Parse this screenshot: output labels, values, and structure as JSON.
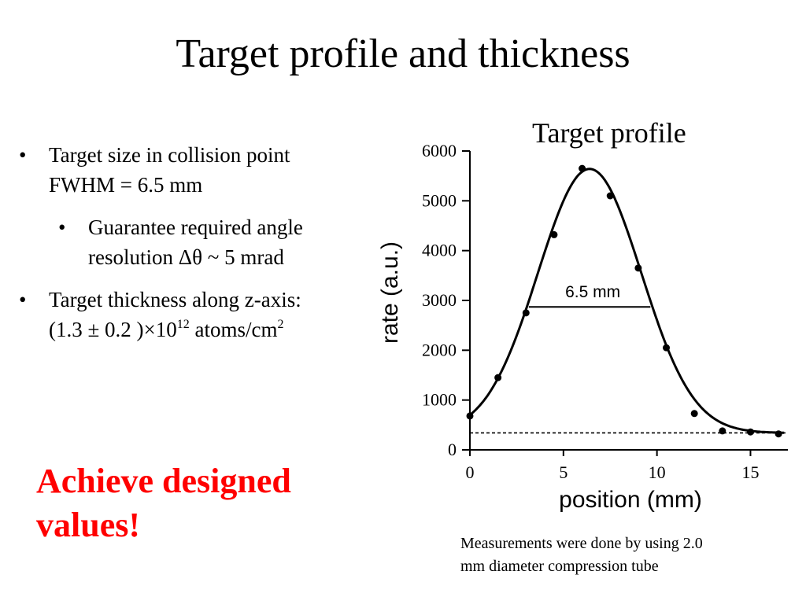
{
  "slide": {
    "title": "Target profile and thickness",
    "bullets": {
      "b1_line1": "Target size in collision point",
      "b1_line2": "FWHM = 6.5 mm",
      "b2_line1": "Guarantee required angle",
      "b2_line2": "resolution Δθ ~ 5 mrad",
      "b3_line1": "Target thickness along z-axis:",
      "b3_prefix": "(1.3 ± 0.2 )×10",
      "b3_exp": "12",
      "b3_unit": " atoms/cm",
      "b3_unit_exp": "2",
      "bullet_symbol": "•"
    },
    "callout_line1": "Achieve designed",
    "callout_line2": "values!",
    "callout_color": "#ff0000",
    "caption_line1": "Measurements were done by using 2.0",
    "caption_line2": "mm diameter compression tube"
  },
  "chart_data": {
    "type": "scatter",
    "title": "Target profile",
    "xlabel": "position  (mm)",
    "ylabel": "rate  (a.u.)",
    "xlim": [
      0,
      17
    ],
    "ylim": [
      0,
      6000
    ],
    "xticks": [
      0,
      5,
      10,
      15
    ],
    "yticks": [
      0,
      1000,
      2000,
      3000,
      4000,
      5000,
      6000
    ],
    "grid": false,
    "series": [
      {
        "kind": "points",
        "x": [
          0,
          1.5,
          3,
          4.5,
          6,
          7.5,
          9,
          10.5,
          12,
          13.5,
          15,
          16.5
        ],
        "y": [
          680,
          1450,
          2750,
          4320,
          5650,
          5100,
          3650,
          2050,
          730,
          380,
          360,
          320
        ]
      },
      {
        "kind": "fit_curve",
        "model": "gaussian",
        "amplitude": 5300,
        "center": 6.4,
        "fwhm": 6.5,
        "baseline": 340
      }
    ],
    "baseline": 340,
    "annotations": [
      {
        "text": "6.5  mm",
        "x_from": 3.15,
        "x_to": 9.65,
        "y": 2870
      }
    ]
  }
}
